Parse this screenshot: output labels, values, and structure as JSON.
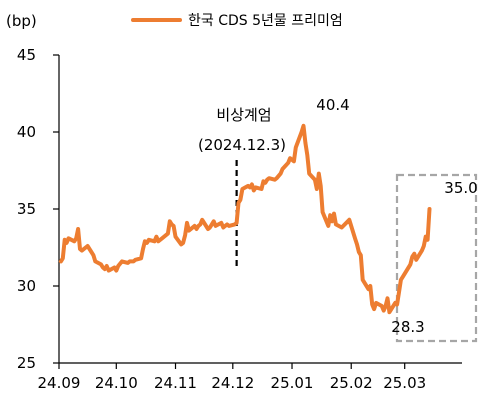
{
  "chart_data": {
    "type": "line",
    "title": "",
    "xlabel": "",
    "ylabel": "(bp)",
    "ylim": [
      25,
      45
    ],
    "yticks": [
      25,
      30,
      35,
      40,
      45
    ],
    "xlim": [
      "2024-09-01",
      "2025-03-31"
    ],
    "x_tick_labels": [
      "24.09",
      "24.10",
      "24.11",
      "24.12",
      "25.01",
      "25.02",
      "25.03"
    ],
    "x_tick_dates": [
      "2024-09-01",
      "2024-10-01",
      "2024-11-01",
      "2024-12-01",
      "2025-01-01",
      "2025-02-01",
      "2025-03-01"
    ],
    "grid": false,
    "legend_position": "top-center",
    "colors": {
      "series": "#ED7D31",
      "marker_line": "#000000",
      "box": "#A6A6A6"
    },
    "series": [
      {
        "name": "한국 CDS 5년물 프리미엄",
        "points": [
          [
            "2024-09-02",
            31.6
          ],
          [
            "2024-09-03",
            31.8
          ],
          [
            "2024-09-04",
            33.0
          ],
          [
            "2024-09-05",
            32.8
          ],
          [
            "2024-09-06",
            33.1
          ],
          [
            "2024-09-09",
            32.9
          ],
          [
            "2024-09-10",
            33.1
          ],
          [
            "2024-09-11",
            33.7
          ],
          [
            "2024-09-12",
            32.4
          ],
          [
            "2024-09-13",
            32.3
          ],
          [
            "2024-09-16",
            32.6
          ],
          [
            "2024-09-19",
            32.0
          ],
          [
            "2024-09-20",
            31.6
          ],
          [
            "2024-09-23",
            31.4
          ],
          [
            "2024-09-24",
            31.2
          ],
          [
            "2024-09-25",
            31.1
          ],
          [
            "2024-09-26",
            31.3
          ],
          [
            "2024-09-27",
            31.0
          ],
          [
            "2024-09-30",
            31.2
          ],
          [
            "2024-10-01",
            31.0
          ],
          [
            "2024-10-02",
            31.3
          ],
          [
            "2024-10-04",
            31.6
          ],
          [
            "2024-10-07",
            31.5
          ],
          [
            "2024-10-08",
            31.6
          ],
          [
            "2024-10-10",
            31.6
          ],
          [
            "2024-10-11",
            31.7
          ],
          [
            "2024-10-14",
            31.8
          ],
          [
            "2024-10-15",
            32.4
          ],
          [
            "2024-10-16",
            32.9
          ],
          [
            "2024-10-17",
            32.8
          ],
          [
            "2024-10-18",
            33.0
          ],
          [
            "2024-10-21",
            32.9
          ],
          [
            "2024-10-22",
            33.2
          ],
          [
            "2024-10-23",
            32.9
          ],
          [
            "2024-10-24",
            33.0
          ],
          [
            "2024-10-25",
            33.1
          ],
          [
            "2024-10-28",
            33.4
          ],
          [
            "2024-10-29",
            34.2
          ],
          [
            "2024-10-30",
            34.0
          ],
          [
            "2024-10-31",
            33.9
          ],
          [
            "2024-11-01",
            33.2
          ],
          [
            "2024-11-04",
            32.7
          ],
          [
            "2024-11-05",
            32.8
          ],
          [
            "2024-11-06",
            33.3
          ],
          [
            "2024-11-07",
            34.1
          ],
          [
            "2024-11-08",
            33.6
          ],
          [
            "2024-11-11",
            33.9
          ],
          [
            "2024-11-12",
            33.7
          ],
          [
            "2024-11-13",
            33.9
          ],
          [
            "2024-11-14",
            34.0
          ],
          [
            "2024-11-15",
            34.3
          ],
          [
            "2024-11-18",
            33.7
          ],
          [
            "2024-11-19",
            33.8
          ],
          [
            "2024-11-20",
            34.0
          ],
          [
            "2024-11-21",
            34.2
          ],
          [
            "2024-11-22",
            33.9
          ],
          [
            "2024-11-25",
            34.1
          ],
          [
            "2024-11-26",
            33.8
          ],
          [
            "2024-11-27",
            33.9
          ],
          [
            "2024-11-28",
            34.0
          ],
          [
            "2024-11-29",
            33.9
          ],
          [
            "2024-12-02",
            34.0
          ],
          [
            "2024-12-03",
            34.1
          ],
          [
            "2024-12-04",
            35.4
          ],
          [
            "2024-12-05",
            35.6
          ],
          [
            "2024-12-06",
            36.3
          ],
          [
            "2024-12-09",
            36.5
          ],
          [
            "2024-12-10",
            36.4
          ],
          [
            "2024-12-11",
            36.6
          ],
          [
            "2024-12-12",
            36.2
          ],
          [
            "2024-12-13",
            36.4
          ],
          [
            "2024-12-16",
            36.3
          ],
          [
            "2024-12-17",
            36.8
          ],
          [
            "2024-12-18",
            36.7
          ],
          [
            "2024-12-19",
            36.9
          ],
          [
            "2024-12-20",
            37.0
          ],
          [
            "2024-12-23",
            36.9
          ],
          [
            "2024-12-24",
            37.0
          ],
          [
            "2024-12-26",
            37.3
          ],
          [
            "2024-12-27",
            37.6
          ],
          [
            "2024-12-30",
            38.0
          ],
          [
            "2024-12-31",
            38.3
          ],
          [
            "2025-01-02",
            38.1
          ],
          [
            "2025-01-03",
            39.0
          ],
          [
            "2025-01-06",
            40.0
          ],
          [
            "2025-01-07",
            40.4
          ],
          [
            "2025-01-08",
            39.3
          ],
          [
            "2025-01-09",
            38.5
          ],
          [
            "2025-01-10",
            37.3
          ],
          [
            "2025-01-13",
            36.9
          ],
          [
            "2025-01-14",
            36.3
          ],
          [
            "2025-01-15",
            37.3
          ],
          [
            "2025-01-16",
            36.5
          ],
          [
            "2025-01-17",
            34.8
          ],
          [
            "2025-01-20",
            33.9
          ],
          [
            "2025-01-21",
            34.6
          ],
          [
            "2025-01-22",
            34.2
          ],
          [
            "2025-01-23",
            34.7
          ],
          [
            "2025-01-24",
            34.0
          ],
          [
            "2025-01-27",
            33.8
          ],
          [
            "2025-01-31",
            34.3
          ],
          [
            "2025-02-03",
            33.1
          ],
          [
            "2025-02-04",
            32.7
          ],
          [
            "2025-02-05",
            32.2
          ],
          [
            "2025-02-06",
            32.0
          ],
          [
            "2025-02-07",
            30.4
          ],
          [
            "2025-02-10",
            29.8
          ],
          [
            "2025-02-11",
            30.0
          ],
          [
            "2025-02-12",
            28.8
          ],
          [
            "2025-02-13",
            28.5
          ],
          [
            "2025-02-14",
            28.9
          ],
          [
            "2025-02-17",
            28.7
          ],
          [
            "2025-02-18",
            28.4
          ],
          [
            "2025-02-19",
            28.7
          ],
          [
            "2025-02-20",
            29.2
          ],
          [
            "2025-02-21",
            28.3
          ],
          [
            "2025-02-24",
            28.9
          ],
          [
            "2025-02-25",
            28.8
          ],
          [
            "2025-02-26",
            29.6
          ],
          [
            "2025-02-27",
            30.4
          ],
          [
            "2025-02-28",
            30.6
          ],
          [
            "2025-03-04",
            31.4
          ],
          [
            "2025-03-05",
            31.9
          ],
          [
            "2025-03-06",
            32.1
          ],
          [
            "2025-03-07",
            31.7
          ],
          [
            "2025-03-10",
            32.3
          ],
          [
            "2025-03-11",
            32.6
          ],
          [
            "2025-03-12",
            33.2
          ],
          [
            "2025-03-13",
            33.0
          ],
          [
            "2025-03-14",
            35.0
          ]
        ]
      }
    ],
    "annotations": {
      "event_label": "비상계엄",
      "event_date_label": "(2024.12.3)",
      "event_date": "2024-12-03",
      "peak_label": "40.4",
      "trough_label": "28.3",
      "last_label": "35.0"
    }
  }
}
